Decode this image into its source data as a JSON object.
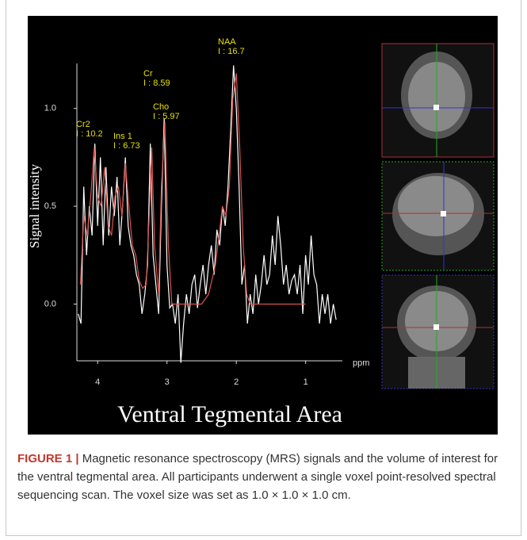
{
  "chart_data": {
    "type": "line",
    "ylabel": "Signal intensity",
    "xlabel": "ppm",
    "panel_title": "Ventral Tegmental Area",
    "xlim": [
      4.3,
      0.47
    ],
    "xticks": [
      4,
      3,
      2,
      1
    ],
    "ylim": [
      -0.29,
      1.23
    ],
    "yticks": [
      {
        "value": 0,
        "label": "0.0"
      },
      {
        "value": 0.5,
        "label": "0.5"
      },
      {
        "value": 1,
        "label": "1.0"
      }
    ],
    "annotations": [
      {
        "label": "NAA",
        "intensity": "I : 16.7"
      },
      {
        "label": "Cr",
        "intensity": "I : 8.59"
      },
      {
        "label": "Cho",
        "intensity": "I : 5.97"
      },
      {
        "label": "Cr2",
        "intensity": "I : 10.2"
      },
      {
        "label": "Ins 1",
        "intensity": "I : 6.73"
      }
    ],
    "series": [
      {
        "color": "#ffffff",
        "x": [
          4.28,
          4.24,
          4.2,
          4.16,
          4.12,
          4.08,
          4.04,
          4.0,
          3.96,
          3.92,
          3.88,
          3.84,
          3.8,
          3.76,
          3.72,
          3.68,
          3.64,
          3.6,
          3.56,
          3.52,
          3.48,
          3.44,
          3.4,
          3.36,
          3.32,
          3.28,
          3.24,
          3.2,
          3.16,
          3.12,
          3.08,
          3.04,
          3.0,
          2.96,
          2.92,
          2.88,
          2.84,
          2.8,
          2.76,
          2.72,
          2.68,
          2.64,
          2.6,
          2.56,
          2.52,
          2.48,
          2.44,
          2.4,
          2.36,
          2.32,
          2.28,
          2.24,
          2.2,
          2.16,
          2.12,
          2.08,
          2.04,
          2.0,
          1.96,
          1.92,
          1.88,
          1.84,
          1.8,
          1.76,
          1.72,
          1.68,
          1.64,
          1.6,
          1.56,
          1.52,
          1.48,
          1.44,
          1.4,
          1.36,
          1.32,
          1.28,
          1.24,
          1.2,
          1.16,
          1.12,
          1.08,
          1.04,
          1.0,
          0.96,
          0.92,
          0.88,
          0.84,
          0.8,
          0.76,
          0.72,
          0.68,
          0.64,
          0.6,
          0.56
        ],
        "values": [
          -0.05,
          -0.1,
          0.6,
          0.25,
          0.5,
          0.35,
          0.82,
          0.4,
          0.75,
          0.3,
          0.7,
          0.35,
          0.6,
          0.45,
          0.65,
          0.3,
          0.5,
          0.75,
          0.4,
          0.3,
          0.25,
          0.15,
          0.1,
          -0.05,
          0.05,
          0.2,
          0.82,
          0.25,
          0.1,
          -0.05,
          0.5,
          0.95,
          0.2,
          -0.02,
          0.0,
          -0.1,
          0.05,
          -0.3,
          -0.1,
          0.05,
          -0.05,
          0.1,
          0.15,
          -0.02,
          0.1,
          0.2,
          0.05,
          0.2,
          0.3,
          0.15,
          0.38,
          0.3,
          0.5,
          0.4,
          0.6,
          0.9,
          1.22,
          1.0,
          0.6,
          0.1,
          0.2,
          -0.1,
          0.05,
          -0.05,
          0.15,
          0.0,
          0.1,
          0.25,
          0.1,
          0.15,
          0.35,
          0.2,
          0.45,
          0.3,
          0.1,
          0.2,
          0.05,
          0.12,
          0.15,
          0.05,
          0.2,
          -0.05,
          0.25,
          0.1,
          0.35,
          0.15,
          0.1,
          -0.1,
          0.05,
          -0.05,
          0.05,
          -0.1,
          0.0,
          -0.08
        ]
      },
      {
        "color": "#d9534f",
        "x": [
          4.25,
          4.2,
          4.15,
          4.1,
          4.05,
          4.0,
          3.95,
          3.9,
          3.85,
          3.8,
          3.75,
          3.7,
          3.65,
          3.6,
          3.55,
          3.5,
          3.45,
          3.4,
          3.35,
          3.3,
          3.25,
          3.22,
          3.18,
          3.12,
          3.08,
          3.03,
          2.98,
          2.93,
          2.5,
          2.4,
          2.3,
          2.25,
          2.2,
          2.15,
          2.1,
          2.05,
          2.0,
          1.95,
          1.9,
          1.85,
          1.8,
          1.0
        ],
        "values": [
          0.1,
          0.45,
          0.35,
          0.55,
          0.8,
          0.55,
          0.5,
          0.7,
          0.4,
          0.35,
          0.55,
          0.6,
          0.45,
          0.72,
          0.5,
          0.3,
          0.25,
          0.12,
          0.08,
          0.1,
          0.5,
          0.8,
          0.3,
          0.05,
          0.6,
          0.93,
          0.3,
          0.0,
          0.0,
          0.05,
          0.2,
          0.35,
          0.5,
          0.45,
          0.6,
          1.05,
          1.18,
          0.8,
          0.3,
          0.05,
          0.0,
          0.0
        ]
      }
    ]
  },
  "caption": {
    "label": "FIGURE 1 |",
    "text": "Magnetic resonance spectroscopy (MRS) signals and the volume of interest for the ventral tegmental area. All participants underwent a single voxel point-resolved spectral sequencing scan. The voxel size was set as 1.0 × 1.0 × 1.0 cm."
  }
}
